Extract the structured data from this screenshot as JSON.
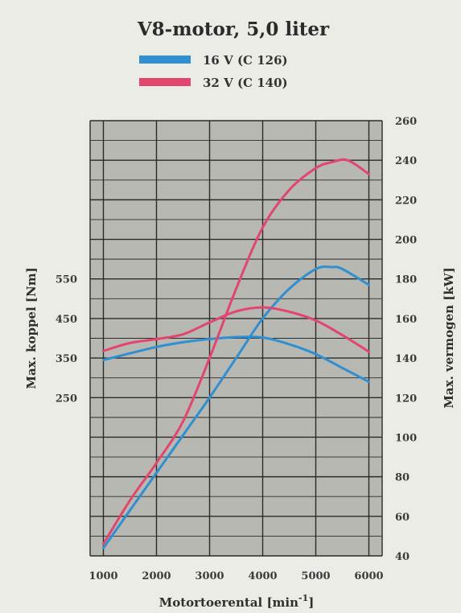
{
  "chart_data": {
    "type": "line",
    "title": "V8-motor, 5,0 liter",
    "xlabel": "Motortoerental [min",
    "xlabel_sup": "-1",
    "xlabel_end": "]",
    "ylabel_left": "Max. koppel [Nm]",
    "ylabel_right": "Max. vermogen [kW]",
    "xlim": [
      750,
      6250
    ],
    "ylim_right": [
      40,
      260
    ],
    "x_ticks": [
      "1000",
      "2000",
      "3000",
      "4000",
      "5000",
      "6000"
    ],
    "y_left_ticks": [
      "550",
      "450",
      "350",
      "250"
    ],
    "y_left_tick_values": [
      550,
      450,
      350,
      250
    ],
    "y_right_ticks": [
      "260",
      "240",
      "220",
      "200",
      "180",
      "160",
      "140",
      "120",
      "100",
      "80",
      "60",
      "40"
    ],
    "y_right_tick_values": [
      260,
      240,
      220,
      200,
      180,
      160,
      140,
      120,
      100,
      80,
      60,
      40
    ],
    "grid": true,
    "legend_position": "top-center",
    "colors": {
      "plot_background": "#b8b8b3",
      "grid": "#2a2a2a",
      "page_background": "#ecece7"
    },
    "series": [
      {
        "name": "16 V (C 126)",
        "color": "#2f8fd0",
        "torque": {
          "x": [
            1000,
            1500,
            2000,
            2500,
            3000,
            3500,
            4000,
            4500,
            5000,
            5500,
            6000
          ],
          "y": [
            345,
            362,
            378,
            390,
            398,
            403,
            402,
            385,
            360,
            325,
            290
          ]
        },
        "power": {
          "x": [
            1000,
            1500,
            2000,
            2500,
            3000,
            3500,
            4000,
            4500,
            5000,
            5300,
            5500,
            6000
          ],
          "y": [
            44,
            63,
            82,
            101,
            120,
            140,
            160,
            175,
            185,
            186,
            185,
            177
          ]
        }
      },
      {
        "name": "32 V (C 140)",
        "color": "#e2456d",
        "torque": {
          "x": [
            1000,
            1500,
            2000,
            2500,
            3000,
            3500,
            4000,
            4500,
            5000,
            5500,
            6000
          ],
          "y": [
            368,
            388,
            398,
            410,
            440,
            468,
            478,
            467,
            445,
            408,
            366
          ]
        },
        "power": {
          "x": [
            1000,
            1500,
            2000,
            2500,
            3000,
            3500,
            4000,
            4500,
            5000,
            5300,
            5600,
            6000
          ],
          "y": [
            46,
            68,
            87,
            108,
            140,
            175,
            206,
            225,
            236,
            239,
            240,
            233
          ]
        }
      }
    ]
  }
}
